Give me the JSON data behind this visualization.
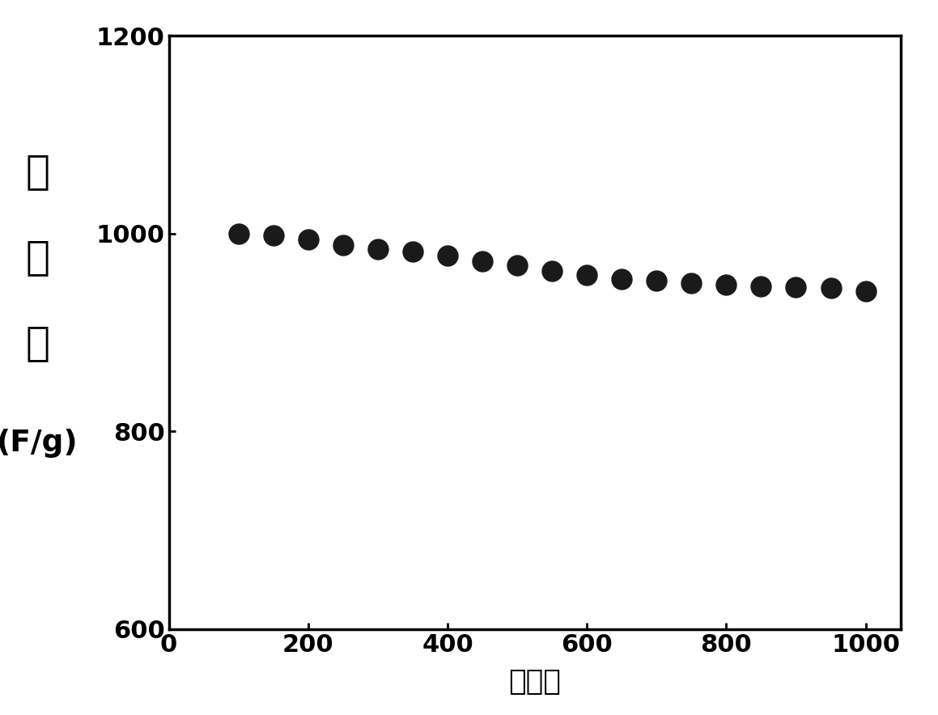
{
  "x_data": [
    100,
    150,
    200,
    250,
    300,
    350,
    400,
    450,
    500,
    550,
    600,
    650,
    700,
    750,
    800,
    850,
    900,
    950,
    1000
  ],
  "y_data": [
    1000,
    998,
    994,
    988,
    984,
    982,
    978,
    972,
    968,
    962,
    958,
    954,
    952,
    950,
    948,
    947,
    946,
    945,
    942
  ],
  "xlabel": "循环数",
  "ylabel_top": "比\n电\n容",
  "ylabel_bottom": "(F/g)",
  "xlim": [
    0,
    1050
  ],
  "ylim": [
    600,
    1200
  ],
  "xticks": [
    0,
    200,
    400,
    600,
    800,
    1000
  ],
  "yticks": [
    600,
    800,
    1000,
    1200
  ],
  "marker_color": "#1a1a1a",
  "marker_size": 18,
  "background_color": "#ffffff",
  "label_fontsize": 26,
  "tick_fontsize": 22,
  "ylabel_char_fontsize": 36
}
